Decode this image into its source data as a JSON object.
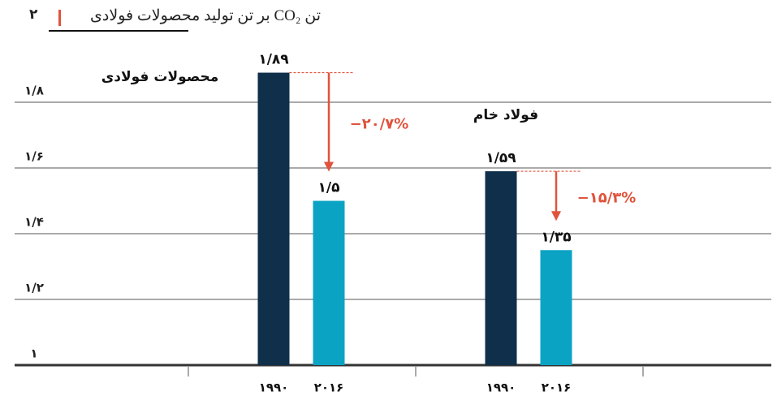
{
  "chart_data": {
    "type": "bar",
    "title": "تن CO₂ بر تن تولید محصولات فولادی",
    "figure_number": "۲",
    "categories": [
      "محصولات فولادی",
      "فولاد خام"
    ],
    "series": [
      {
        "name": "۱۹۹۰",
        "color": "#0f2f4b",
        "values": [
          1.89,
          1.59
        ],
        "value_labels": [
          "۱/۸۹",
          "۱/۵۹"
        ]
      },
      {
        "name": "۲۰۱۶",
        "color": "#0ba3c4",
        "values": [
          1.5,
          1.35
        ],
        "value_labels": [
          "۱/۵",
          "۱/۳۵"
        ]
      }
    ],
    "changes": [
      "−۲۰/۷%",
      "−۱۵/۳%"
    ],
    "change_color": "#e0533c",
    "ylim": [
      1,
      1.9
    ],
    "yticks": [
      {
        "value": 1,
        "label": "۱"
      },
      {
        "value": 1.2,
        "label": "۱/۲"
      },
      {
        "value": 1.4,
        "label": "۱/۴"
      },
      {
        "value": 1.6,
        "label": "۱/۶"
      },
      {
        "value": 1.8,
        "label": "۱/۸"
      }
    ],
    "grid": true
  }
}
